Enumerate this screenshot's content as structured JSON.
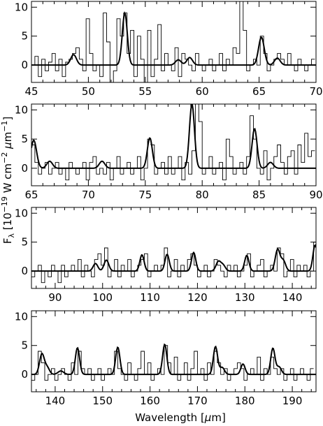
{
  "chart_data": [
    {
      "type": "line",
      "xlim": [
        45,
        70
      ],
      "ylim": [
        -3,
        11
      ],
      "xticks": [
        45,
        50,
        55,
        60,
        65,
        70
      ],
      "yticks": [
        0,
        5,
        10
      ],
      "ytick_labels": [
        "0",
        "5",
        "10"
      ],
      "xtick_labels": [
        "45",
        "50",
        "55",
        "60",
        "65",
        "70"
      ],
      "series": [
        {
          "role": "observed",
          "style": "step",
          "x": [
            45,
            45.3,
            45.6,
            45.9,
            46.2,
            46.5,
            46.8,
            47.1,
            47.4,
            47.7,
            48,
            48.3,
            48.6,
            48.9,
            49.2,
            49.5,
            49.8,
            50.1,
            50.4,
            50.7,
            51,
            51.3,
            51.6,
            51.9,
            52.2,
            52.5,
            52.8,
            53.1,
            53.4,
            53.7,
            54,
            54.3,
            54.6,
            54.9,
            55.2,
            55.5,
            55.8,
            56.1,
            56.4,
            56.7,
            57,
            57.3,
            57.6,
            57.9,
            58.2,
            58.5,
            58.8,
            59.1,
            59.4,
            59.7,
            60,
            60.3,
            60.6,
            60.9,
            61.2,
            61.5,
            61.8,
            62.1,
            62.4,
            62.7,
            63,
            63.3,
            63.6,
            63.9,
            64.2,
            64.5,
            64.8,
            65.1,
            65.4,
            65.7,
            66,
            66.3,
            66.6,
            66.9,
            67.2,
            67.5,
            67.8,
            68.1,
            68.4,
            68.7,
            69,
            69.3,
            69.6
          ],
          "y": [
            0,
            1.5,
            -2,
            1,
            -1,
            0.5,
            2,
            -1,
            1,
            -2,
            0.5,
            1,
            2,
            3,
            1,
            -1,
            8,
            2,
            -1,
            0,
            -2,
            9,
            4,
            -3,
            -1,
            8,
            5,
            9,
            2,
            6,
            -2,
            5,
            1,
            -3,
            6,
            -2,
            1,
            7,
            -1,
            2,
            0,
            -1,
            3,
            -2,
            2,
            1,
            0,
            -1,
            2,
            0,
            -1,
            0,
            1,
            -1,
            0,
            2,
            -1,
            1,
            0,
            3,
            2,
            11,
            6,
            -1,
            0,
            1,
            0,
            5,
            2,
            -1,
            0,
            1,
            2,
            1,
            0,
            2,
            0,
            -1,
            1,
            0,
            -1,
            0,
            1
          ]
        },
        {
          "role": "model",
          "style": "line",
          "peaks": [
            {
              "center": 48.7,
              "amp": 1.8,
              "width": 0.25
            },
            {
              "center": 53.2,
              "amp": 9.0,
              "width": 0.22
            },
            {
              "center": 57.9,
              "amp": 0.9,
              "width": 0.25
            },
            {
              "center": 58.9,
              "amp": 1.3,
              "width": 0.25
            },
            {
              "center": 65.2,
              "amp": 4.8,
              "width": 0.25
            },
            {
              "center": 66.6,
              "amp": 1.2,
              "width": 0.25
            }
          ]
        }
      ]
    },
    {
      "type": "line",
      "xlim": [
        65,
        90
      ],
      "ylim": [
        -3,
        11
      ],
      "xticks": [
        65,
        70,
        75,
        80,
        85,
        90
      ],
      "yticks": [
        0,
        5,
        10
      ],
      "ytick_labels": [
        "0",
        "5",
        "10"
      ],
      "xtick_labels": [
        "65",
        "70",
        "75",
        "80",
        "85",
        "90"
      ],
      "series": [
        {
          "role": "observed",
          "style": "step",
          "x": [
            65,
            65.3,
            65.6,
            65.9,
            66.2,
            66.5,
            66.8,
            67.1,
            67.4,
            67.7,
            68,
            68.3,
            68.6,
            68.9,
            69.2,
            69.5,
            69.8,
            70.1,
            70.4,
            70.7,
            71,
            71.3,
            71.6,
            71.9,
            72.2,
            72.5,
            72.8,
            73.1,
            73.4,
            73.7,
            74,
            74.3,
            74.6,
            74.9,
            75.2,
            75.5,
            75.8,
            76.1,
            76.4,
            76.7,
            77,
            77.3,
            77.6,
            77.9,
            78.2,
            78.5,
            78.8,
            79.1,
            79.4,
            79.7,
            80,
            80.3,
            80.6,
            80.9,
            81.2,
            81.5,
            81.8,
            82.1,
            82.4,
            82.7,
            83,
            83.3,
            83.6,
            83.9,
            84.2,
            84.5,
            84.8,
            85.1,
            85.4,
            85.7,
            86,
            86.3,
            86.6,
            86.9,
            87.2,
            87.5,
            87.8,
            88.1,
            88.4,
            88.7,
            89,
            89.3,
            89.6
          ],
          "y": [
            4,
            1,
            -1,
            0,
            1,
            -1,
            0,
            1,
            -1,
            0,
            -2,
            1,
            0,
            -1,
            0,
            1,
            -2,
            1,
            2,
            -1,
            0,
            -1,
            1,
            -2,
            0,
            2,
            -1,
            0,
            1,
            -1,
            0,
            2,
            -2,
            0,
            5,
            4,
            -1,
            0,
            1,
            -1,
            2,
            -1,
            0,
            2,
            -2,
            1,
            -1,
            3,
            11,
            8,
            -1,
            0,
            2,
            -1,
            0,
            1,
            -2,
            5,
            2,
            -1,
            0,
            1,
            -1,
            2,
            9,
            5,
            0,
            -1,
            3,
            -2,
            0,
            2,
            4,
            1,
            -1,
            2,
            3,
            -1,
            4,
            1,
            6,
            2,
            3
          ]
        },
        {
          "role": "model",
          "style": "line",
          "peaks": [
            {
              "center": 65.2,
              "amp": 4.8,
              "width": 0.25
            },
            {
              "center": 66.6,
              "amp": 1.2,
              "width": 0.25
            },
            {
              "center": 71.2,
              "amp": 1.2,
              "width": 0.25
            },
            {
              "center": 75.4,
              "amp": 5.2,
              "width": 0.22
            },
            {
              "center": 79.1,
              "amp": 11.0,
              "width": 0.22
            },
            {
              "center": 84.6,
              "amp": 6.8,
              "width": 0.22
            },
            {
              "center": 86.0,
              "amp": 1.0,
              "width": 0.25
            }
          ]
        }
      ]
    },
    {
      "type": "line",
      "xlim": [
        85,
        145
      ],
      "ylim": [
        -3,
        11
      ],
      "xticks": [
        90,
        100,
        110,
        120,
        130,
        140
      ],
      "yticks": [
        0,
        5,
        10
      ],
      "ytick_labels": [
        "0",
        "5",
        "10"
      ],
      "xtick_labels": [
        "90",
        "100",
        "110",
        "120",
        "130",
        "140"
      ],
      "series": [
        {
          "role": "observed",
          "style": "step",
          "x": [
            85,
            85.7,
            86.4,
            87.1,
            87.8,
            88.5,
            89.2,
            89.9,
            90.6,
            91.3,
            92,
            92.7,
            93.4,
            94.1,
            94.8,
            95.5,
            96.2,
            96.9,
            97.6,
            98.3,
            99,
            99.7,
            100.4,
            101.1,
            101.8,
            102.5,
            103.2,
            103.9,
            104.6,
            105.3,
            106,
            106.7,
            107.4,
            108.1,
            108.8,
            109.5,
            110.2,
            110.9,
            111.6,
            112.3,
            113,
            113.7,
            114.4,
            115.1,
            115.8,
            116.5,
            117.2,
            117.9,
            118.6,
            119.3,
            120,
            120.7,
            121.4,
            122.1,
            122.8,
            123.5,
            124.2,
            124.9,
            125.6,
            126.3,
            127,
            127.7,
            128.4,
            129.1,
            129.8,
            130.5,
            131.2,
            131.9,
            132.6,
            133.3,
            134,
            134.7,
            135.4,
            136.1,
            136.8,
            137.5,
            138.2,
            138.9,
            139.6,
            140.3,
            141,
            141.7,
            142.4,
            143.1,
            143.8,
            144.5
          ],
          "y": [
            -1,
            0,
            1,
            -2,
            0,
            -1,
            1,
            0,
            -2,
            1,
            -1,
            0,
            1,
            0,
            2,
            -1,
            1,
            0,
            -1,
            2,
            3,
            1,
            4,
            -1,
            0,
            2,
            -1,
            1,
            0,
            2,
            -1,
            0,
            1,
            2,
            3,
            -1,
            0,
            1,
            0,
            1,
            4,
            -1,
            0,
            2,
            -1,
            1,
            0,
            2,
            3,
            1,
            -1,
            0,
            1,
            -1,
            0,
            2,
            1,
            0,
            -1,
            1,
            0,
            1,
            -1,
            0,
            1,
            3,
            -1,
            0,
            1,
            2,
            -1,
            0,
            1,
            0,
            4,
            3,
            -1,
            0,
            2,
            -1,
            1,
            0,
            1,
            -1,
            0,
            5
          ]
        },
        {
          "role": "model",
          "style": "line",
          "peaks": [
            {
              "center": 98.5,
              "amp": 1.3,
              "width": 0.5
            },
            {
              "center": 100.8,
              "amp": 1.9,
              "width": 0.5
            },
            {
              "center": 108.3,
              "amp": 2.8,
              "width": 0.45
            },
            {
              "center": 113.6,
              "amp": 2.9,
              "width": 0.45
            },
            {
              "center": 119.2,
              "amp": 3.2,
              "width": 0.45
            },
            {
              "center": 124.4,
              "amp": 1.6,
              "width": 0.5
            },
            {
              "center": 125.4,
              "amp": 1.0,
              "width": 0.5
            },
            {
              "center": 130.4,
              "amp": 2.7,
              "width": 0.45
            },
            {
              "center": 136.9,
              "amp": 3.7,
              "width": 0.5
            },
            {
              "center": 138.1,
              "amp": 1.8,
              "width": 0.5
            },
            {
              "center": 144.8,
              "amp": 4.5,
              "width": 0.45
            }
          ]
        }
      ]
    },
    {
      "type": "line",
      "xlim": [
        135,
        195
      ],
      "ylim": [
        -3,
        11
      ],
      "xticks": [
        140,
        150,
        160,
        170,
        180,
        190
      ],
      "yticks": [
        0,
        5,
        10
      ],
      "ytick_labels": [
        "0",
        "5",
        "10"
      ],
      "xtick_labels": [
        "140",
        "150",
        "160",
        "170",
        "180",
        "190"
      ],
      "series": [
        {
          "role": "observed",
          "style": "step",
          "x": [
            135,
            135.7,
            136.4,
            137.1,
            137.8,
            138.5,
            139.2,
            139.9,
            140.6,
            141.3,
            142,
            142.7,
            143.4,
            144.1,
            144.8,
            145.5,
            146.2,
            146.9,
            147.6,
            148.3,
            149,
            149.7,
            150.4,
            151.1,
            151.8,
            152.5,
            153.2,
            153.9,
            154.6,
            155.3,
            156,
            156.7,
            157.4,
            158.1,
            158.8,
            159.5,
            160.2,
            160.9,
            161.6,
            162.3,
            163,
            163.7,
            164.4,
            165.1,
            165.8,
            166.5,
            167.2,
            167.9,
            168.6,
            169.3,
            170,
            170.7,
            171.4,
            172.1,
            172.8,
            173.5,
            174.2,
            174.9,
            175.6,
            176.3,
            177,
            177.7,
            178.4,
            179.1,
            179.8,
            180.5,
            181.2,
            181.9,
            182.6,
            183.3,
            184,
            184.7,
            185.4,
            186.1,
            186.8,
            187.5,
            188.2,
            188.9,
            189.6,
            190.3,
            191,
            191.7,
            192.4,
            193.1,
            193.8
          ],
          "y": [
            -1,
            0,
            4,
            2,
            -1,
            0,
            1,
            -1,
            0,
            1,
            0,
            -1,
            2,
            0,
            4,
            1,
            0,
            1,
            -1,
            0,
            1,
            -1,
            0,
            1,
            0,
            4,
            1,
            0,
            -1,
            2,
            0,
            -1,
            1,
            4,
            0,
            2,
            -1,
            0,
            1,
            0,
            5,
            2,
            0,
            3,
            -1,
            0,
            2,
            -1,
            1,
            4,
            0,
            1,
            -1,
            2,
            0,
            4,
            2,
            0,
            1,
            -1,
            0,
            1,
            2,
            1,
            -1,
            0,
            1,
            0,
            3,
            -1,
            1,
            0,
            3,
            1,
            0,
            1,
            -1,
            0,
            1,
            -1,
            0,
            1,
            0,
            -1,
            1
          ]
        },
        {
          "role": "model",
          "style": "line",
          "peaks": [
            {
              "center": 137.2,
              "amp": 3.5,
              "width": 0.5
            },
            {
              "center": 138.3,
              "amp": 1.2,
              "width": 0.5
            },
            {
              "center": 141.2,
              "amp": 0.6,
              "width": 0.6
            },
            {
              "center": 144.7,
              "amp": 4.6,
              "width": 0.45
            },
            {
              "center": 153.2,
              "amp": 4.7,
              "width": 0.45
            },
            {
              "center": 163.1,
              "amp": 5.2,
              "width": 0.45
            },
            {
              "center": 173.8,
              "amp": 4.8,
              "width": 0.45
            },
            {
              "center": 175.2,
              "amp": 1.2,
              "width": 0.5
            },
            {
              "center": 179.6,
              "amp": 1.8,
              "width": 0.45
            },
            {
              "center": 185.9,
              "amp": 4.5,
              "width": 0.45
            },
            {
              "center": 187.2,
              "amp": 1.3,
              "width": 0.5
            }
          ]
        }
      ]
    }
  ],
  "axes": {
    "xlabel_prefix": "Wavelength [",
    "xlabel_mu": "μ",
    "xlabel_suffix": "m]",
    "ylabel_prefix": "F",
    "ylabel_sub": "λ",
    "ylabel_mid": " [10",
    "ylabel_exp1": "−19",
    "ylabel_mid2": " W cm",
    "ylabel_exp2": "−2",
    "ylabel_mu": " μ",
    "ylabel_mid3": "m",
    "ylabel_exp3": "−1",
    "ylabel_end": "]"
  }
}
